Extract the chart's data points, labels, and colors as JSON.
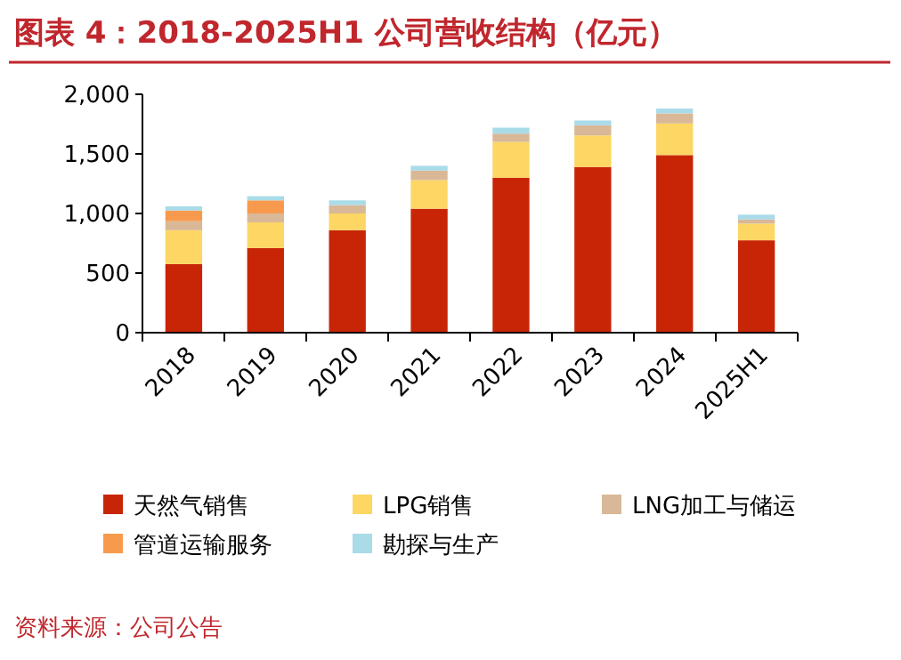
{
  "chart_data": {
    "type": "bar",
    "stacked": true,
    "title": "图表 4：2018-2025H1 公司营收结构（亿元）",
    "categories": [
      "2018",
      "2019",
      "2020",
      "2021",
      "2022",
      "2023",
      "2024",
      "2025H1"
    ],
    "series": [
      {
        "name": "天然气销售",
        "color": "#c82506",
        "values": [
          575,
          710,
          860,
          1040,
          1300,
          1390,
          1490,
          775
        ]
      },
      {
        "name": "LPG销售",
        "color": "#fdd663",
        "values": [
          285,
          215,
          140,
          240,
          300,
          265,
          265,
          140
        ]
      },
      {
        "name": "LNG加工与储运",
        "color": "#d9b897",
        "values": [
          75,
          75,
          70,
          80,
          70,
          85,
          85,
          35
        ]
      },
      {
        "name": "管道运输服务",
        "color": "#f89a4e",
        "values": [
          90,
          110,
          0,
          0,
          0,
          0,
          0,
          0
        ]
      },
      {
        "name": "勘探与生产",
        "color": "#a9dbe8",
        "values": [
          35,
          35,
          40,
          40,
          50,
          40,
          40,
          40
        ]
      }
    ],
    "ylim": [
      0,
      2000
    ],
    "yticks": [
      0,
      {
        "value": 500,
        "label": "500"
      },
      {
        "value": 1000,
        "label": "1,000"
      },
      {
        "value": 1500,
        "label": "1,500"
      },
      {
        "value": 2000,
        "label": "2,000"
      }
    ],
    "grid": false,
    "legend": "bottom",
    "annotations": [
      "资料来源：公司公告"
    ]
  }
}
